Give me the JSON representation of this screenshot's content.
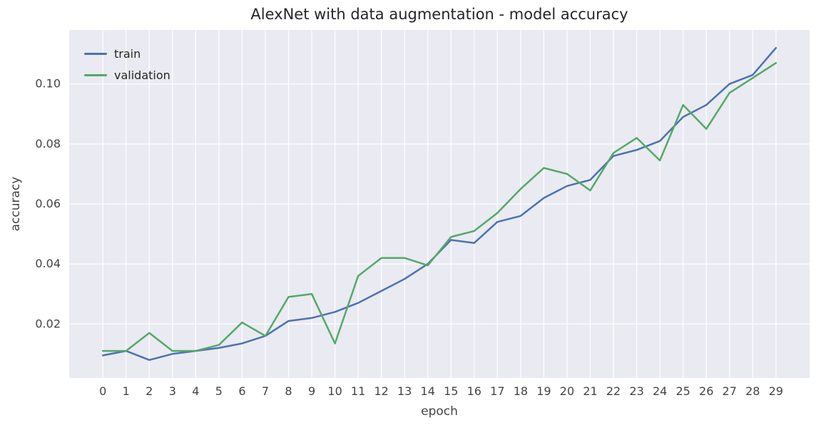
{
  "chart_data": {
    "type": "line",
    "title": "AlexNet with data augmentation - model accuracy",
    "xlabel": "epoch",
    "ylabel": "accuracy",
    "grid": true,
    "legend_position": "upper left",
    "plot_background": "#eaeaf2",
    "grid_color": "#ffffff",
    "xlim": [
      -1.45,
      30.45
    ],
    "ylim": [
      0.002,
      0.118
    ],
    "x": [
      0,
      1,
      2,
      3,
      4,
      5,
      6,
      7,
      8,
      9,
      10,
      11,
      12,
      13,
      14,
      15,
      16,
      17,
      18,
      19,
      20,
      21,
      22,
      23,
      24,
      25,
      26,
      27,
      28,
      29
    ],
    "xticks": [
      0,
      1,
      2,
      3,
      4,
      5,
      6,
      7,
      8,
      9,
      10,
      11,
      12,
      13,
      14,
      15,
      16,
      17,
      18,
      19,
      20,
      21,
      22,
      23,
      24,
      25,
      26,
      27,
      28,
      29
    ],
    "xtick_labels": [
      "0",
      "1",
      "2",
      "3",
      "4",
      "5",
      "6",
      "7",
      "8",
      "9",
      "10",
      "11",
      "12",
      "13",
      "14",
      "15",
      "16",
      "17",
      "18",
      "19",
      "20",
      "21",
      "22",
      "23",
      "24",
      "25",
      "26",
      "27",
      "28",
      "29"
    ],
    "yticks": [
      0.02,
      0.04,
      0.06,
      0.08,
      0.1
    ],
    "ytick_labels": [
      "0.02",
      "0.04",
      "0.06",
      "0.08",
      "0.10"
    ],
    "series": [
      {
        "name": "train",
        "color": "#4c72b0",
        "values": [
          0.0095,
          0.011,
          0.008,
          0.01,
          0.011,
          0.012,
          0.0135,
          0.016,
          0.021,
          0.022,
          0.024,
          0.027,
          0.031,
          0.035,
          0.04,
          0.048,
          0.047,
          0.054,
          0.056,
          0.062,
          0.066,
          0.068,
          0.076,
          0.078,
          0.081,
          0.089,
          0.093,
          0.1,
          0.103,
          0.112
        ]
      },
      {
        "name": "validation",
        "color": "#55a868",
        "values": [
          0.011,
          0.011,
          0.017,
          0.011,
          0.011,
          0.013,
          0.0205,
          0.016,
          0.029,
          0.03,
          0.0135,
          0.036,
          0.042,
          0.042,
          0.0395,
          0.049,
          0.051,
          0.057,
          0.065,
          0.072,
          0.07,
          0.0645,
          0.077,
          0.082,
          0.0745,
          0.093,
          0.085,
          0.097,
          0.102,
          0.107
        ]
      }
    ]
  }
}
